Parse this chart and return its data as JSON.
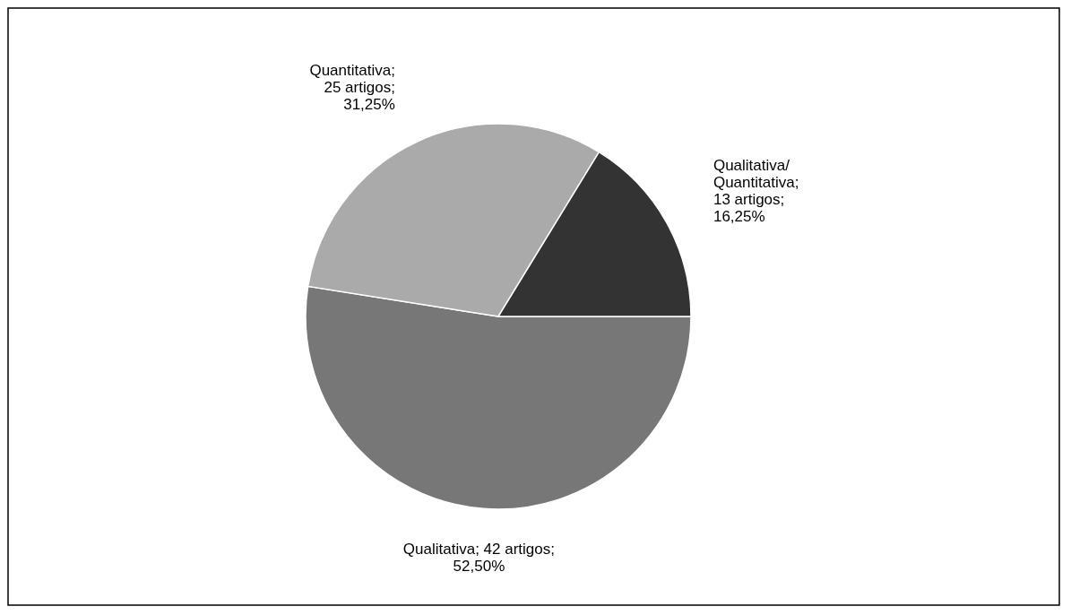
{
  "chart_data": {
    "type": "pie",
    "categories": [
      "Qualitativa",
      "Quantitativa",
      "Qualitativa/Quantitativa"
    ],
    "values": [
      42,
      25,
      13
    ],
    "colors": [
      "#777777",
      "#aaaaaa",
      "#333333"
    ],
    "value_labels": [
      "; 42 artigos;\n52,50%",
      ";\n25 artigos;\n31,25%",
      ";\n13 artigos;\n16,25%"
    ]
  }
}
